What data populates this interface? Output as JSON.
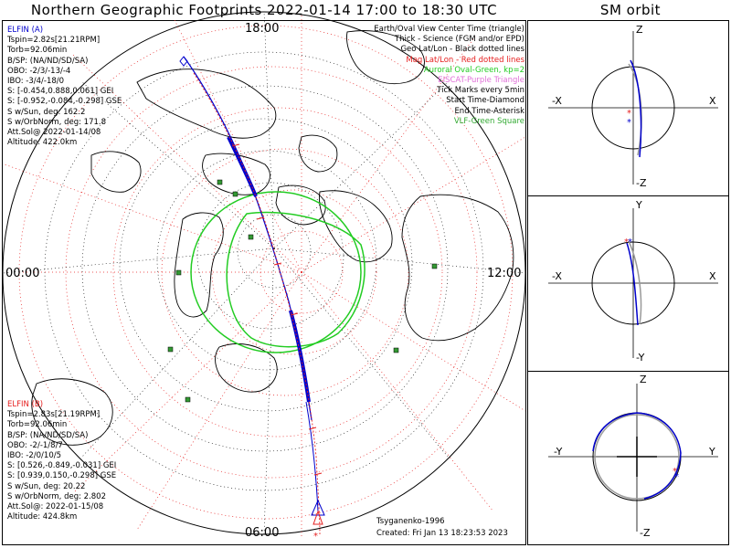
{
  "title": "Northern Geographic Footprints 2022-01-14 17:00 to 18:30 UTC",
  "sm_title": "SM orbit",
  "mlt_labels": {
    "top": "18:00",
    "left": "00:00",
    "right": "12:00",
    "bottom": "06:00"
  },
  "sat_a": {
    "name": "ELFIN (A)",
    "lines": [
      "Tspin=2.82s[21.21RPM]",
      "Torb=92.06min",
      "B/SP: (NA/ND/SD/SA)",
      "OBO: -2/3/-13/-4",
      "IBO: -3/4/-18/0",
      "S: [-0.454,0.888,0.061] GEI",
      "S: [-0.952,-0.084,-0.298] GSE",
      "S w/Sun, deg: 162.2",
      "S w/OrbNorm, deg: 171.8",
      "Att.Sol@ 2022-01-14/08",
      "Altitude: 422.0km"
    ]
  },
  "sat_b": {
    "name": "ELFIN (B)",
    "lines": [
      "Tspin=2.83s[21.19RPM]",
      "Torb=92.06min",
      "B/SP: (NA/ND/SD/SA)",
      "OBO: -2/-1/8/7",
      "IBO: -2/0/10/5",
      "S: [0.526,-0.849,-0.031] GEI",
      "S: [0.939,0.150,-0.298] GSE",
      "S w/Sun, deg: 20.22",
      "S w/OrbNorm, deg: 2.802",
      "Att.Sol@: 2022-01-15/08",
      "Altitude: 424.8km"
    ]
  },
  "legend": [
    {
      "text": "Earth/Oval View Center Time (triangle)",
      "color": "#000000"
    },
    {
      "text": "Thick - Science (FGM and/or EPD)",
      "color": "#000000"
    },
    {
      "text": "Geo Lat/Lon - Black dotted lines",
      "color": "#000000"
    },
    {
      "text": "Mag Lat/Lon - Red dotted lines",
      "color": "#e62020"
    },
    {
      "text": "Auroral Oval-Green, kp=2",
      "color": "#22cc22"
    },
    {
      "text": "EISCAT-Purple Triangle",
      "color": "#e070d8"
    },
    {
      "text": "Tick Marks every 5min",
      "color": "#000000"
    },
    {
      "text": "Start Time-Diamond",
      "color": "#000000"
    },
    {
      "text": "End Time-Asterisk",
      "color": "#000000"
    },
    {
      "text": "VLF-Green Square",
      "color": "#33aa33"
    }
  ],
  "credit": "Tsyganenko-1996",
  "created": "Created: Fri Jan 13 18:23:53 2023",
  "sm_panels": [
    {
      "top": "Z",
      "bottom": "-Z",
      "left": "-X",
      "right": "X"
    },
    {
      "top": "Y",
      "bottom": "-Y",
      "left": "-X",
      "right": "X"
    },
    {
      "top": "Z",
      "bottom": "-Z",
      "left": "-Y",
      "right": "Y"
    }
  ],
  "colors": {
    "sat_a": "#0000cc",
    "sat_b": "#e62020",
    "oval": "#22cc22",
    "vlf": "#339933"
  }
}
